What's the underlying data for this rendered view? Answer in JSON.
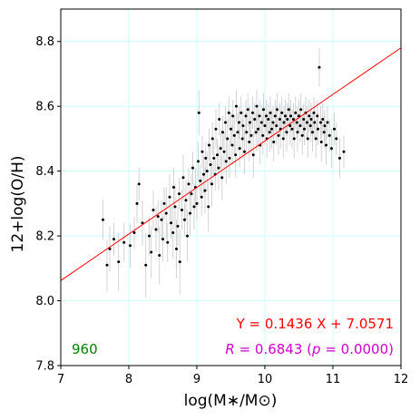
{
  "chart_data": {
    "type": "scatter",
    "title": "",
    "xlabel": "log(M∗/M⊙)",
    "ylabel": "12+log(O/H)",
    "xlim": [
      7,
      12
    ],
    "ylim": [
      7.8,
      8.9
    ],
    "xticks": [
      7,
      8,
      9,
      10,
      11,
      12
    ],
    "yticks": [
      7.8,
      8.0,
      8.2,
      8.4,
      8.6,
      8.8
    ],
    "xtick_labels": [
      "7",
      "8",
      "9",
      "10",
      "11",
      "12"
    ],
    "ytick_labels": [
      "7.8",
      "8.0",
      "8.2",
      "8.4",
      "8.6",
      "8.8"
    ],
    "grid": true,
    "grid_color": "#ccffff",
    "point_color": "#000000",
    "errorbar_color": "#c8c8c8",
    "fit_line_color": "#ff0000",
    "fit": {
      "slope": 0.1436,
      "intercept": 7.0571
    },
    "annotations": {
      "count": "960",
      "equation": "Y = 0.1436 X + 7.0571",
      "r_symbol": "R",
      "r_value": " = 0.6843 (",
      "p_symbol": "p",
      "p_value": " = 0.0000)"
    },
    "annotation_colors": {
      "count": "#008000",
      "equation": "#ff0000",
      "correlation": "#cc00cc"
    },
    "n_points": 960,
    "points": [
      [
        7.62,
        8.25,
        0.06
      ],
      [
        7.68,
        8.11,
        0.08
      ],
      [
        7.72,
        8.16,
        0.07
      ],
      [
        7.78,
        8.19,
        0.05
      ],
      [
        7.85,
        8.12,
        0.09
      ],
      [
        7.93,
        8.18,
        0.06
      ],
      [
        8.02,
        8.17,
        0.07
      ],
      [
        8.08,
        8.21,
        0.05
      ],
      [
        8.12,
        8.3,
        0.06
      ],
      [
        8.15,
        8.36,
        0.05
      ],
      [
        8.2,
        8.24,
        0.07
      ],
      [
        8.25,
        8.11,
        0.1
      ],
      [
        8.3,
        8.2,
        0.06
      ],
      [
        8.33,
        8.15,
        0.08
      ],
      [
        8.36,
        8.28,
        0.06
      ],
      [
        8.4,
        8.22,
        0.07
      ],
      [
        8.43,
        8.26,
        0.05
      ],
      [
        8.45,
        8.14,
        0.09
      ],
      [
        8.48,
        8.25,
        0.06
      ],
      [
        8.5,
        8.19,
        0.07
      ],
      [
        8.52,
        8.3,
        0.05
      ],
      [
        8.55,
        8.27,
        0.08
      ],
      [
        8.57,
        8.18,
        0.06
      ],
      [
        8.6,
        8.32,
        0.07
      ],
      [
        8.62,
        8.24,
        0.05
      ],
      [
        8.65,
        8.21,
        0.08
      ],
      [
        8.66,
        8.35,
        0.06
      ],
      [
        8.68,
        8.29,
        0.07
      ],
      [
        8.7,
        8.16,
        0.09
      ],
      [
        8.72,
        8.23,
        0.06
      ],
      [
        8.74,
        8.33,
        0.05
      ],
      [
        8.75,
        8.12,
        0.1
      ],
      [
        8.78,
        8.28,
        0.06
      ],
      [
        8.8,
        8.38,
        0.07
      ],
      [
        8.82,
        8.25,
        0.05
      ],
      [
        8.84,
        8.31,
        0.06
      ],
      [
        8.86,
        8.2,
        0.08
      ],
      [
        8.88,
        8.36,
        0.05
      ],
      [
        8.9,
        8.27,
        0.07
      ],
      [
        8.92,
        8.33,
        0.06
      ],
      [
        8.94,
        8.41,
        0.05
      ],
      [
        8.96,
        8.29,
        0.07
      ],
      [
        8.98,
        8.35,
        0.06
      ],
      [
        9.0,
        8.3,
        0.05
      ],
      [
        9.02,
        8.43,
        0.06
      ],
      [
        9.03,
        8.58,
        0.07
      ],
      [
        9.05,
        8.37,
        0.05
      ],
      [
        9.07,
        8.32,
        0.06
      ],
      [
        9.08,
        8.46,
        0.05
      ],
      [
        9.1,
        8.39,
        0.06
      ],
      [
        9.12,
        8.34,
        0.07
      ],
      [
        9.13,
        8.44,
        0.05
      ],
      [
        9.15,
        8.4,
        0.06
      ],
      [
        9.17,
        8.29,
        0.08
      ],
      [
        9.18,
        8.48,
        0.05
      ],
      [
        9.2,
        8.42,
        0.06
      ],
      [
        9.22,
        8.36,
        0.07
      ],
      [
        9.23,
        8.5,
        0.05
      ],
      [
        9.25,
        8.44,
        0.06
      ],
      [
        9.27,
        8.39,
        0.05
      ],
      [
        9.28,
        8.53,
        0.06
      ],
      [
        9.3,
        8.45,
        0.05
      ],
      [
        9.32,
        8.41,
        0.07
      ],
      [
        9.33,
        8.56,
        0.05
      ],
      [
        9.35,
        8.47,
        0.06
      ],
      [
        9.37,
        8.38,
        0.07
      ],
      [
        9.38,
        8.52,
        0.05
      ],
      [
        9.4,
        8.46,
        0.06
      ],
      [
        9.42,
        8.55,
        0.05
      ],
      [
        9.43,
        8.43,
        0.07
      ],
      [
        9.45,
        8.5,
        0.06
      ],
      [
        9.47,
        8.58,
        0.05
      ],
      [
        9.48,
        8.44,
        0.06
      ],
      [
        9.5,
        8.53,
        0.05
      ],
      [
        9.52,
        8.48,
        0.06
      ],
      [
        9.53,
        8.57,
        0.05
      ],
      [
        9.55,
        8.51,
        0.06
      ],
      [
        9.57,
        8.45,
        0.07
      ],
      [
        9.58,
        8.6,
        0.05
      ],
      [
        9.6,
        8.52,
        0.06
      ],
      [
        9.62,
        8.55,
        0.05
      ],
      [
        9.63,
        8.47,
        0.06
      ],
      [
        9.65,
        8.58,
        0.05
      ],
      [
        9.67,
        8.5,
        0.06
      ],
      [
        9.68,
        8.54,
        0.05
      ],
      [
        9.7,
        8.46,
        0.07
      ],
      [
        9.72,
        8.57,
        0.05
      ],
      [
        9.73,
        8.52,
        0.06
      ],
      [
        9.75,
        8.59,
        0.05
      ],
      [
        9.77,
        8.49,
        0.06
      ],
      [
        9.78,
        8.55,
        0.05
      ],
      [
        9.8,
        8.51,
        0.06
      ],
      [
        9.82,
        8.58,
        0.05
      ],
      [
        9.83,
        8.45,
        0.07
      ],
      [
        9.85,
        8.56,
        0.05
      ],
      [
        9.87,
        8.52,
        0.06
      ],
      [
        9.88,
        8.6,
        0.05
      ],
      [
        9.9,
        8.53,
        0.06
      ],
      [
        9.92,
        8.57,
        0.05
      ],
      [
        9.93,
        8.48,
        0.06
      ],
      [
        9.95,
        8.55,
        0.05
      ],
      [
        9.97,
        8.51,
        0.06
      ],
      [
        9.98,
        8.59,
        0.05
      ],
      [
        10.0,
        8.54,
        0.06
      ],
      [
        10.02,
        8.57,
        0.05
      ],
      [
        10.03,
        8.5,
        0.06
      ],
      [
        10.05,
        8.56,
        0.05
      ],
      [
        10.07,
        8.52,
        0.06
      ],
      [
        10.08,
        8.58,
        0.05
      ],
      [
        10.1,
        8.53,
        0.06
      ],
      [
        10.12,
        8.55,
        0.05
      ],
      [
        10.13,
        8.49,
        0.06
      ],
      [
        10.15,
        8.57,
        0.05
      ],
      [
        10.17,
        8.54,
        0.06
      ],
      [
        10.18,
        8.59,
        0.05
      ],
      [
        10.2,
        8.51,
        0.06
      ],
      [
        10.22,
        8.56,
        0.05
      ],
      [
        10.23,
        8.53,
        0.06
      ],
      [
        10.25,
        8.58,
        0.05
      ],
      [
        10.27,
        8.5,
        0.06
      ],
      [
        10.28,
        8.55,
        0.05
      ],
      [
        10.3,
        8.57,
        0.05
      ],
      [
        10.32,
        8.52,
        0.06
      ],
      [
        10.33,
        8.56,
        0.05
      ],
      [
        10.35,
        8.59,
        0.05
      ],
      [
        10.37,
        8.54,
        0.06
      ],
      [
        10.38,
        8.57,
        0.05
      ],
      [
        10.4,
        8.53,
        0.06
      ],
      [
        10.42,
        8.56,
        0.05
      ],
      [
        10.43,
        8.5,
        0.06
      ],
      [
        10.45,
        8.58,
        0.05
      ],
      [
        10.47,
        8.55,
        0.05
      ],
      [
        10.48,
        8.52,
        0.06
      ],
      [
        10.5,
        8.57,
        0.05
      ],
      [
        10.52,
        8.54,
        0.05
      ],
      [
        10.53,
        8.59,
        0.05
      ],
      [
        10.55,
        8.51,
        0.06
      ],
      [
        10.57,
        8.56,
        0.05
      ],
      [
        10.58,
        8.53,
        0.05
      ],
      [
        10.6,
        8.58,
        0.05
      ],
      [
        10.62,
        8.55,
        0.05
      ],
      [
        10.63,
        8.5,
        0.06
      ],
      [
        10.65,
        8.57,
        0.05
      ],
      [
        10.67,
        8.54,
        0.05
      ],
      [
        10.68,
        8.56,
        0.05
      ],
      [
        10.7,
        8.52,
        0.06
      ],
      [
        10.72,
        8.58,
        0.05
      ],
      [
        10.73,
        8.55,
        0.05
      ],
      [
        10.75,
        8.5,
        0.06
      ],
      [
        10.77,
        8.57,
        0.05
      ],
      [
        10.78,
        8.53,
        0.05
      ],
      [
        10.8,
        8.72,
        0.06
      ],
      [
        10.82,
        8.55,
        0.05
      ],
      [
        10.83,
        8.49,
        0.06
      ],
      [
        10.85,
        8.56,
        0.05
      ],
      [
        10.87,
        8.52,
        0.05
      ],
      [
        10.88,
        8.54,
        0.05
      ],
      [
        10.9,
        8.48,
        0.06
      ],
      [
        10.92,
        8.55,
        0.05
      ],
      [
        10.95,
        8.51,
        0.05
      ],
      [
        10.98,
        8.47,
        0.06
      ],
      [
        11.02,
        8.53,
        0.05
      ],
      [
        11.05,
        8.5,
        0.05
      ],
      [
        11.1,
        8.44,
        0.06
      ],
      [
        11.16,
        8.46,
        0.05
      ]
    ]
  }
}
